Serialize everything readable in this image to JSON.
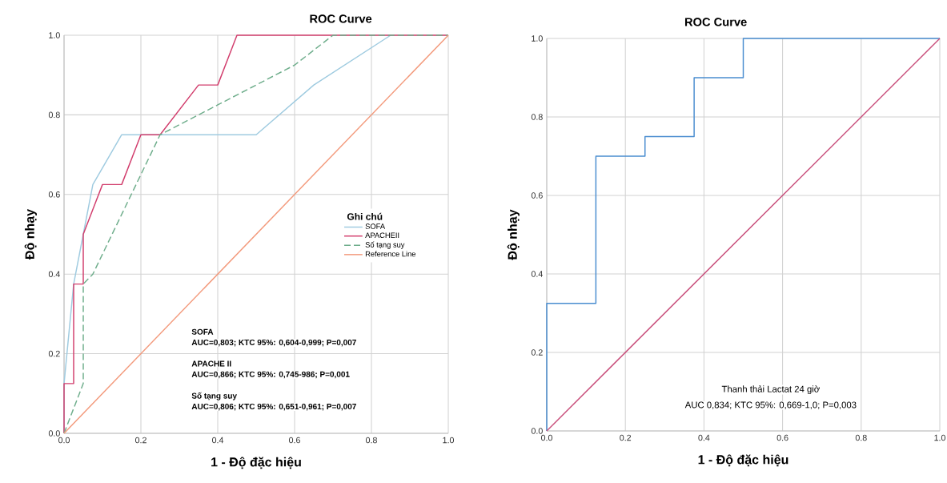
{
  "chart_data": [
    {
      "type": "line",
      "title": "ROC Curve",
      "xlabel": "1 - Độ đặc hiệu",
      "ylabel": "Độ nhạy",
      "legend_title": "Ghi chú",
      "xlim": [
        0,
        1
      ],
      "ylim": [
        0,
        1
      ],
      "xticks": [
        {
          "value": 0,
          "label": "0.0"
        },
        {
          "value": 0.2,
          "label": "0.2"
        },
        {
          "value": 0.4,
          "label": "0.4"
        },
        {
          "value": 0.6,
          "label": "0.6"
        },
        {
          "value": 0.8,
          "label": "0.8"
        },
        {
          "value": 1,
          "label": "1.0"
        }
      ],
      "yticks": [
        {
          "value": 0,
          "label": "0.0"
        },
        {
          "value": 0.2,
          "label": "0.2"
        },
        {
          "value": 0.4,
          "label": "0.4"
        },
        {
          "value": 0.6,
          "label": "0.6"
        },
        {
          "value": 0.8,
          "label": "0.8"
        },
        {
          "value": 1,
          "label": "1.0"
        }
      ],
      "grid": true,
      "legend": "right",
      "series": [
        {
          "name": "SOFA",
          "color": "#9fcbe0",
          "line_style": "solid",
          "x": [
            0,
            0,
            0.025,
            0.05,
            0.075,
            0.15,
            0.5,
            0.65,
            0.85
          ],
          "values": [
            0,
            0.125,
            0.375,
            0.5,
            0.625,
            0.75,
            0.75,
            0.875,
            1
          ]
        },
        {
          "name": "APACHEII",
          "color": "#d23f6e",
          "line_style": "solid",
          "x": [
            0,
            0,
            0.025,
            0.025,
            0.05,
            0.05,
            0.1,
            0.15,
            0.2,
            0.25,
            0.35,
            0.4,
            0.45,
            1
          ],
          "values": [
            0,
            0.125,
            0.125,
            0.375,
            0.375,
            0.5,
            0.625,
            0.625,
            0.75,
            0.75,
            0.875,
            0.875,
            1,
            1
          ]
        },
        {
          "name": "Số tạng suy",
          "color": "#6fae8c",
          "line_style": "dashed",
          "x": [
            0,
            0.05,
            0.05,
            0.075,
            0.15,
            0.2,
            0.25,
            0.4,
            0.6,
            0.7,
            1
          ],
          "values": [
            0,
            0.125,
            0.375,
            0.4,
            0.55,
            0.65,
            0.75,
            0.825,
            0.925,
            1,
            1
          ]
        },
        {
          "name": "Reference Line",
          "color": "#f39a7c",
          "line_style": "solid",
          "x": [
            0,
            1
          ],
          "values": [
            0,
            1
          ]
        }
      ],
      "annotations": [
        "SOFA",
        "AUC=0,803; KTC 95%: 0,604-0,999; P=0,007",
        "APACHE II",
        "AUC=0,866; KTC 95%: 0,745-986; P=0,001",
        "Số tạng suy",
        "AUC=0,806; KTC 95%: 0,651-0,961; P=0,007"
      ]
    },
    {
      "type": "line",
      "title": "ROC Curve",
      "xlabel": "1 - Độ đặc hiệu",
      "ylabel": "Độ nhạy",
      "xlim": [
        0,
        1
      ],
      "ylim": [
        0,
        1
      ],
      "xticks": [
        {
          "value": 0,
          "label": "0.0"
        },
        {
          "value": 0.2,
          "label": "0.2"
        },
        {
          "value": 0.4,
          "label": "0.4"
        },
        {
          "value": 0.6,
          "label": "0.6"
        },
        {
          "value": 0.8,
          "label": "0.8"
        },
        {
          "value": 1,
          "label": "1.0"
        }
      ],
      "yticks": [
        {
          "value": 0,
          "label": "0.0"
        },
        {
          "value": 0.2,
          "label": "0.2"
        },
        {
          "value": 0.4,
          "label": "0.4"
        },
        {
          "value": 0.6,
          "label": "0.6"
        },
        {
          "value": 0.8,
          "label": "0.8"
        },
        {
          "value": 1,
          "label": "1.0"
        }
      ],
      "grid": true,
      "series": [
        {
          "color": "#4a8dd0",
          "x": [
            0,
            0,
            0.125,
            0.125,
            0.25,
            0.25,
            0.375,
            0.375,
            0.5,
            0.5,
            1
          ],
          "values": [
            0,
            0.325,
            0.325,
            0.7,
            0.7,
            0.75,
            0.75,
            0.9,
            0.9,
            1,
            1
          ]
        },
        {
          "color": "#c9507c",
          "x": [
            0,
            1
          ],
          "values": [
            0,
            1
          ]
        }
      ],
      "annotations": [
        "Thanh thải Lactat 24 giờ",
        "AUC 0,834; KTC 95%: 0,669-1,0; P=0,003"
      ]
    }
  ]
}
